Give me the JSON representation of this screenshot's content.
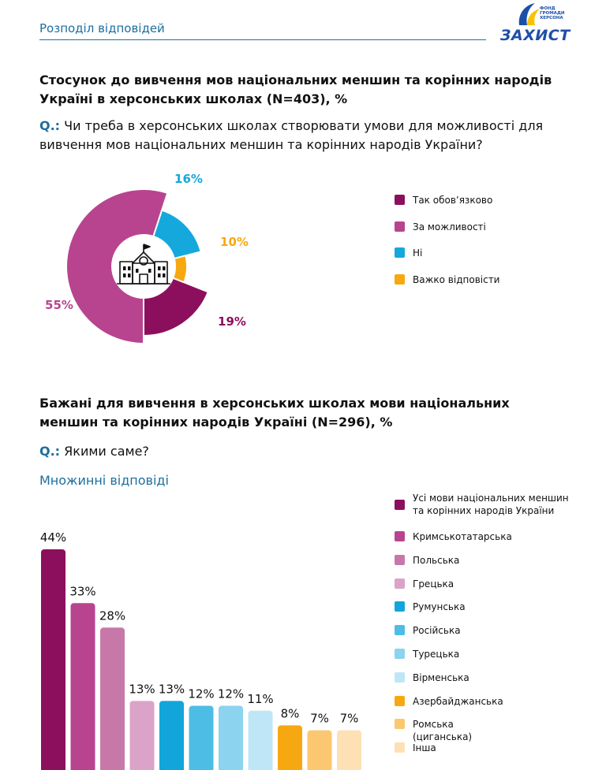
{
  "header": {
    "section_title": "Розподіл відповідей",
    "logo": {
      "name": "ЗАХИСТ",
      "tagline_lines": [
        "ФОНД",
        "ГРОМАДИ",
        "ХЕРСОНА"
      ]
    }
  },
  "chart1": {
    "title": "Стосунок до вивчення мов національних меншин та корінних народів Україні в херсонських школах (N=403), %",
    "question_label": "Q.:",
    "question_text": "Чи треба в херсонських школах створювати умови для можливості для вивчення мов національних меншин та корінних народів України?",
    "center_icon": "school-building-icon"
  },
  "chart2": {
    "title": "Бажані для вивчення в херсонських школах мови національних меншин та корінних народів Україні (N=296), %",
    "question_label": "Q.:",
    "question_text": "Якими саме?",
    "note": "Множинні відповіді"
  },
  "chart_data": [
    {
      "type": "pie",
      "style": "donut",
      "categories": [
        "Так обов’язково",
        "За можливості",
        "Ні",
        "Важко відповісти"
      ],
      "values": [
        19,
        55,
        16,
        10
      ],
      "value_labels": [
        "19%",
        "55%",
        "16%",
        "10%"
      ],
      "colors": [
        "#8c0f5e",
        "#b8448f",
        "#14a8dd",
        "#f7a811"
      ],
      "legend_position": "right",
      "title": "Стосунок до вивчення мов національних меншин та корінних народів Україні в херсонських школах (N=403), %"
    },
    {
      "type": "bar",
      "categories": [
        "Усі мови національних меншин та корінних народів України",
        "Кримськотатарська",
        "Польська",
        "Грецька",
        "Румунська",
        "Російська",
        "Турецька",
        "Вірменська",
        "Азербайджанська",
        "Ромська (циганська)",
        "Інша"
      ],
      "values": [
        44,
        33,
        28,
        13,
        13,
        12,
        12,
        11,
        8,
        7,
        7
      ],
      "value_labels": [
        "44%",
        "33%",
        "28%",
        "13%",
        "13%",
        "12%",
        "12%",
        "11%",
        "8%",
        "7%",
        "7%"
      ],
      "colors": [
        "#8c0f5e",
        "#b8448f",
        "#c778a8",
        "#dba3c8",
        "#12a5d9",
        "#4dbde6",
        "#8bd3ef",
        "#bfe6f6",
        "#f7a811",
        "#fbc770",
        "#fde1b4"
      ],
      "legend_position": "right",
      "grid": false,
      "title": "Бажані для вивчення в херсонських школах мови національних меншин та корінних народів Україні (N=296), %"
    }
  ]
}
